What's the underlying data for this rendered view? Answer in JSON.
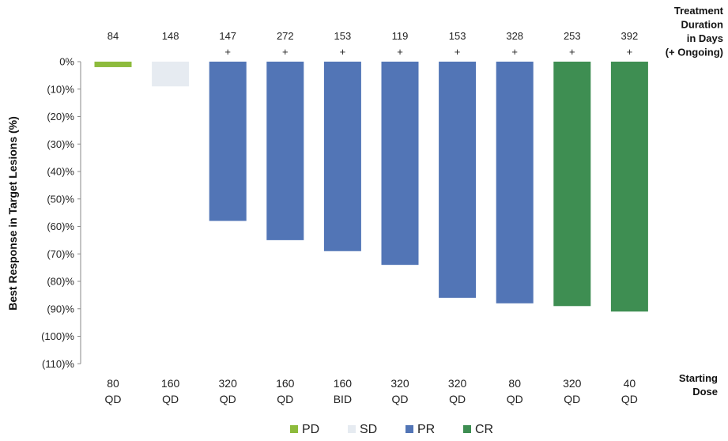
{
  "chart_data": {
    "type": "bar",
    "ylabel": "Best Response in Target Lesions (%)",
    "ylim": [
      -110,
      0
    ],
    "yticks": [
      "0%",
      "(10)%",
      "(20)%",
      "(30)%",
      "(40)%",
      "(50)%",
      "(60)%",
      "(70)%",
      "(80)%",
      "(90)%",
      "(100)%",
      "(110)%"
    ],
    "top_header": [
      "Treatment",
      "Duration",
      "in Days",
      "(+ Ongoing)"
    ],
    "bottom_header": [
      "Starting",
      "Dose"
    ],
    "bars": [
      {
        "value": -2,
        "category": "PD",
        "duration": "84",
        "ongoing": false,
        "dose": [
          "80",
          "QD"
        ]
      },
      {
        "value": -9,
        "category": "SD",
        "duration": "148",
        "ongoing": false,
        "dose": [
          "160",
          "QD"
        ]
      },
      {
        "value": -58,
        "category": "PR",
        "duration": "147",
        "ongoing": true,
        "dose": [
          "320",
          "QD"
        ]
      },
      {
        "value": -65,
        "category": "PR",
        "duration": "272",
        "ongoing": true,
        "dose": [
          "160",
          "QD"
        ]
      },
      {
        "value": -69,
        "category": "PR",
        "duration": "153",
        "ongoing": true,
        "dose": [
          "160",
          "BID"
        ]
      },
      {
        "value": -74,
        "category": "PR",
        "duration": "119",
        "ongoing": true,
        "dose": [
          "320",
          "QD"
        ]
      },
      {
        "value": -86,
        "category": "PR",
        "duration": "153",
        "ongoing": true,
        "dose": [
          "320",
          "QD"
        ]
      },
      {
        "value": -88,
        "category": "PR",
        "duration": "328",
        "ongoing": true,
        "dose": [
          "80",
          "QD"
        ]
      },
      {
        "value": -89,
        "category": "CR",
        "duration": "253",
        "ongoing": true,
        "dose": [
          "320",
          "QD"
        ]
      },
      {
        "value": -91,
        "category": "CR",
        "duration": "392",
        "ongoing": true,
        "dose": [
          "40",
          "QD"
        ]
      }
    ],
    "ongoing_marker": "+",
    "legend": [
      {
        "name": "PD",
        "color": "#8dbb3c"
      },
      {
        "name": "SD",
        "color": "#e6ebf1"
      },
      {
        "name": "PR",
        "color": "#5275b6"
      },
      {
        "name": "CR",
        "color": "#3e8e52"
      }
    ]
  }
}
